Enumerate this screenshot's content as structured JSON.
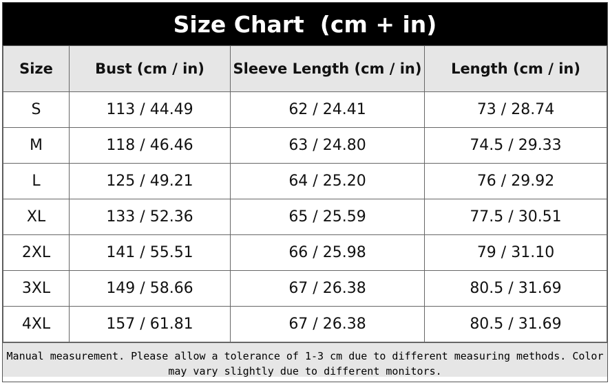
{
  "header": {
    "title": "Size Chart  (cm + in)"
  },
  "table": {
    "columns": [
      "Size",
      "Bust (cm / in)",
      "Sleeve Length (cm / in)",
      "Length (cm / in)"
    ],
    "rows": [
      [
        "S",
        "113 / 44.49",
        "62 / 24.41",
        "73 / 28.74"
      ],
      [
        "M",
        "118 / 46.46",
        "63 / 24.80",
        "74.5 / 29.33"
      ],
      [
        "L",
        "125 / 49.21",
        "64 / 25.20",
        "76 / 29.92"
      ],
      [
        "XL",
        "133 / 52.36",
        "65 / 25.59",
        "77.5 / 30.51"
      ],
      [
        "2XL",
        "141 / 55.51",
        "66 / 25.98",
        "79 / 31.10"
      ],
      [
        "3XL",
        "149 / 58.66",
        "67 / 26.38",
        "80.5 / 31.69"
      ],
      [
        "4XL",
        "157 / 61.81",
        "67 / 26.38",
        "80.5 / 31.69"
      ]
    ]
  },
  "footer": {
    "note": "Manual measurement. Please allow a tolerance of 1-3 cm due to different measuring methods. Color may vary slightly due to different monitors."
  }
}
